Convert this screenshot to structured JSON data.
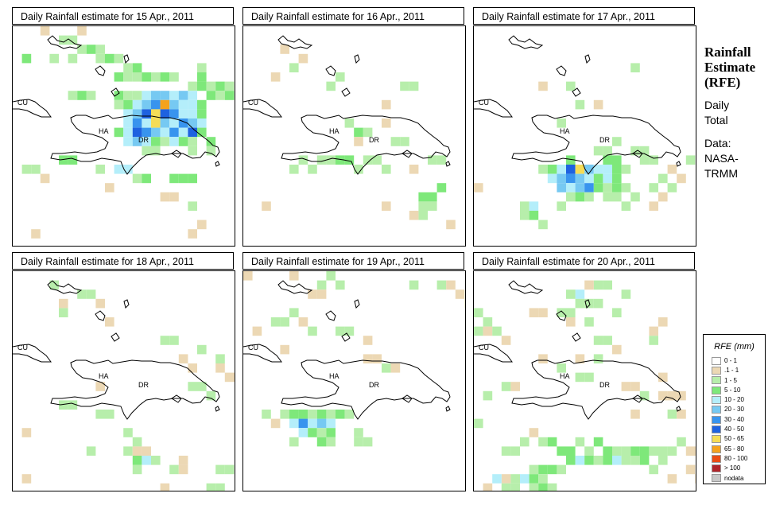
{
  "panels": [
    {
      "title": "Daily Rainfall estimate for  15 Apr., 2011"
    },
    {
      "title": "Daily Rainfall estimate for  16 Apr., 2011"
    },
    {
      "title": "Daily Rainfall estimate for  17 Apr., 2011"
    },
    {
      "title": "Daily Rainfall estimate for  18 Apr., 2011"
    },
    {
      "title": "Daily Rainfall estimate for  19 Apr., 2011"
    },
    {
      "title": "Daily Rainfall estimate for  20 Apr., 2011"
    }
  ],
  "map_labels": {
    "cu": "CU",
    "ha": "HA",
    "dr": "DR"
  },
  "side": {
    "title_line1": "Rainfall",
    "title_line2": "Estimate",
    "title_line3": "(RFE)",
    "subtitle_line1": "Daily",
    "subtitle_line2": "Total",
    "source_line1": "Data:",
    "source_line2": "NASA-",
    "source_line3": "TRMM"
  },
  "legend": {
    "title": "RFE (mm)",
    "classes": [
      {
        "label": "0 - 1",
        "color": "#ffffff"
      },
      {
        "label": ".1 - 1",
        "color": "#ecd8b4"
      },
      {
        "label": "1 - 5",
        "color": "#b7eeab"
      },
      {
        "label": "5 - 10",
        "color": "#7ee87a"
      },
      {
        "label": "10 - 20",
        "color": "#b4eefa"
      },
      {
        "label": "20 - 30",
        "color": "#76c9f2"
      },
      {
        "label": "30 - 40",
        "color": "#3894ee"
      },
      {
        "label": "40 - 50",
        "color": "#1e62e0"
      },
      {
        "label": "50 - 65",
        "color": "#f5dc56"
      },
      {
        "label": "65 - 80",
        "color": "#f4a21e"
      },
      {
        "label": "80 - 100",
        "color": "#ea4c14"
      },
      {
        "label": "> 100",
        "color": "#b0242a"
      },
      {
        "label": "nodata",
        "color": "#c8c8c8"
      }
    ]
  }
}
